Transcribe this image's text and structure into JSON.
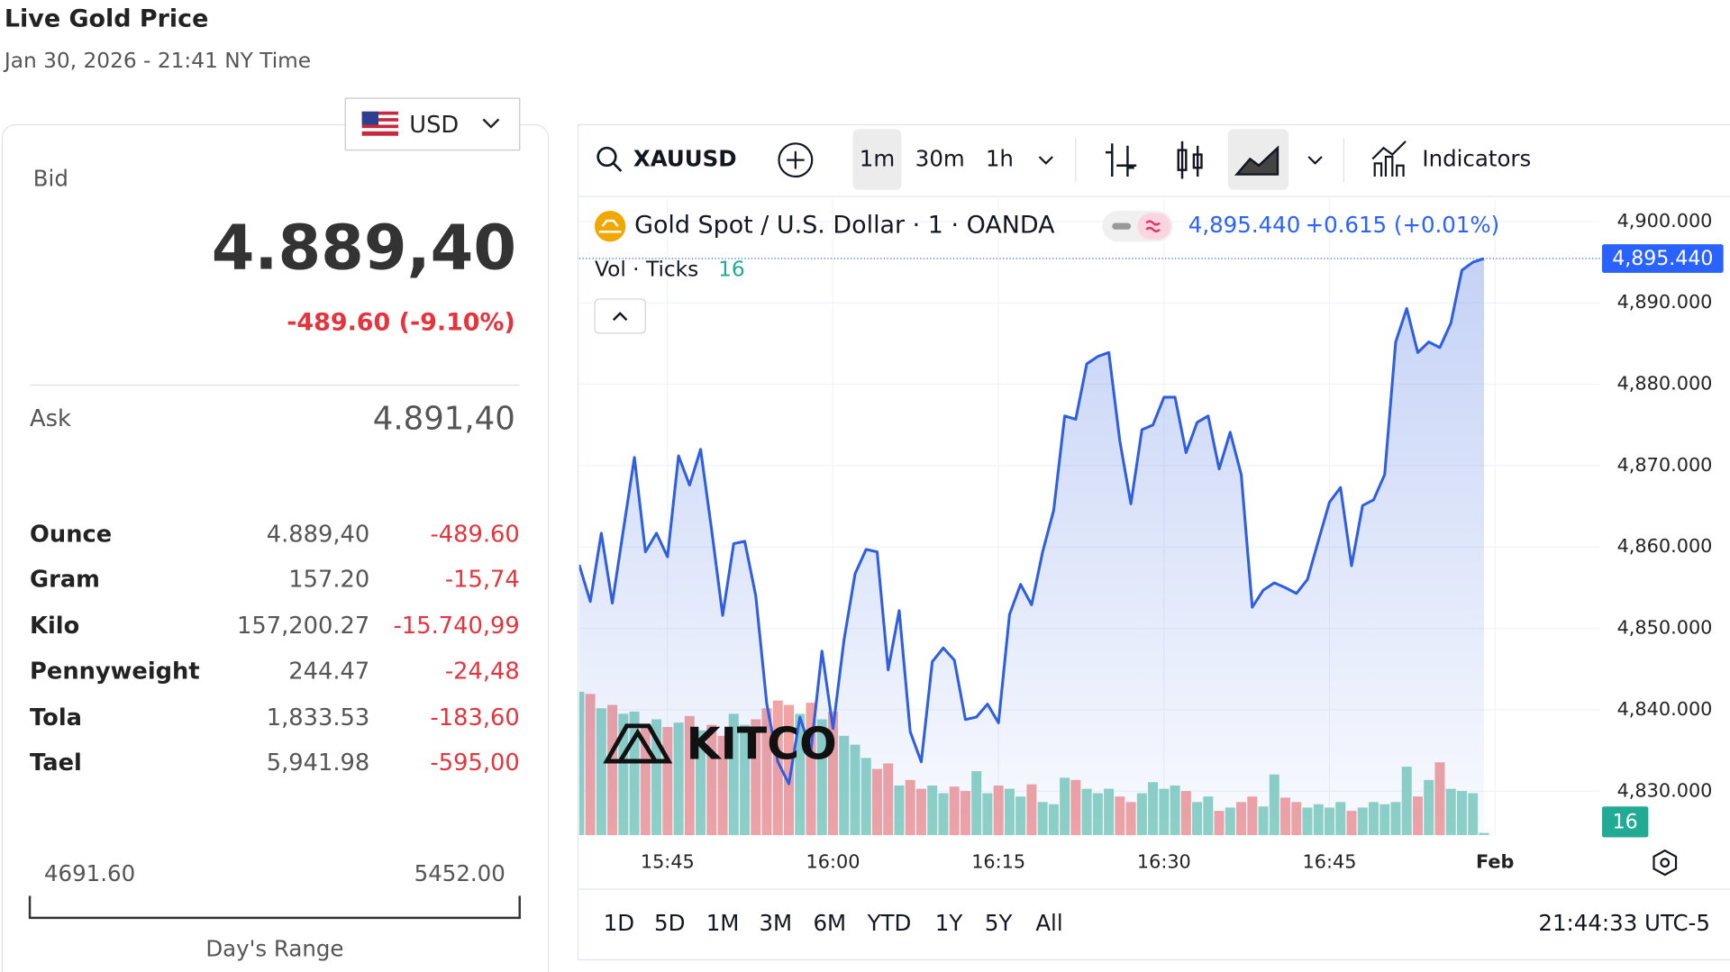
{
  "header": {
    "title": "Live Gold Price",
    "subtitle": "Jan 30, 2026 - 21:41 NY Time"
  },
  "currency": "USD",
  "bid": {
    "label": "Bid",
    "value": "4.889,40",
    "change": "-489.60 (-9.10%)"
  },
  "ask": {
    "label": "Ask",
    "value": "4.891,40"
  },
  "units": {
    "rows": [
      [
        "Ounce",
        "4.889,40",
        "-489.60"
      ],
      [
        "Gram",
        "157.20",
        "-15,74"
      ],
      [
        "Kilo",
        "157,200.27",
        "-15.740,99"
      ],
      [
        "Pennyweight",
        "244.47",
        "-24,48"
      ],
      [
        "Tola",
        "1,833.53",
        "-183,60"
      ],
      [
        "Tael",
        "5,941.98",
        "-595,00"
      ]
    ]
  },
  "range": {
    "low": "4691.60",
    "high": "5452.00",
    "label": "Day's Range"
  },
  "toolbar": {
    "symbol": "XAUUSD",
    "intervals": [
      "1m",
      "30m",
      "1h"
    ],
    "indicators": "Indicators"
  },
  "chart_data": {
    "type": "line",
    "title": "Gold Spot / U.S. Dollar · 1 · OANDA",
    "last_label": "4,895.440",
    "change_label": "+0.615 (+0.01%)",
    "volume_title": "Vol · Ticks",
    "watermark": "KITCO",
    "color": "#2f5fe0",
    "up_color": "#8fd3c6",
    "down_color": "#f2a4a4",
    "values": [
      4857.8,
      4853.3,
      4861.7,
      4853.1,
      4862.1,
      4871.0,
      4859.4,
      4861.7,
      4858.8,
      4871.2,
      4867.6,
      4872.0,
      4862.1,
      4851.6,
      4860.4,
      4860.7,
      4854.0,
      4840.7,
      4833.6,
      4830.9,
      4839.1,
      4835.0,
      4847.2,
      4837.7,
      4848.6,
      4856.7,
      4859.7,
      4859.4,
      4844.9,
      4852.2,
      4837.3,
      4833.6,
      4845.9,
      4847.6,
      4846.1,
      4838.8,
      4839.1,
      4840.7,
      4838.4,
      4851.7,
      4855.4,
      4852.9,
      4859.4,
      4864.5,
      4876.1,
      4875.7,
      4882.5,
      4883.4,
      4883.9,
      4873.0,
      4865.3,
      4874.4,
      4875.0,
      4878.4,
      4878.4,
      4871.6,
      4875.3,
      4876.1,
      4869.6,
      4874.1,
      4868.9,
      4852.6,
      4854.7,
      4855.6,
      4855.0,
      4854.3,
      4856.0,
      4860.8,
      4865.5,
      4867.3,
      4857.7,
      4865.1,
      4865.8,
      4868.9,
      4885.2,
      4889.3,
      4883.9,
      4885.2,
      4884.5,
      4887.5,
      4894.0,
      4895.0,
      4895.44
    ],
    "volume": [
      1040,
      1024,
      920,
      944,
      880,
      896,
      800,
      840,
      784,
      816,
      864,
      760,
      800,
      720,
      880,
      800,
      840,
      920,
      976,
      944,
      880,
      960,
      840,
      896,
      720,
      656,
      560,
      480,
      520,
      360,
      400,
      336,
      360,
      304,
      352,
      320,
      464,
      304,
      360,
      336,
      280,
      368,
      240,
      224,
      416,
      400,
      336,
      304,
      336,
      280,
      240,
      304,
      384,
      336,
      360,
      320,
      240,
      280,
      176,
      200,
      240,
      280,
      208,
      440,
      272,
      240,
      200,
      224,
      200,
      240,
      176,
      200,
      240,
      224,
      240,
      496,
      280,
      400,
      528,
      336,
      320,
      304,
      16
    ],
    "xlim": [
      0,
      92.5
    ],
    "xticks": [
      {
        "value": 8,
        "label": "15:45"
      },
      {
        "value": 23,
        "label": "16:00"
      },
      {
        "value": 38,
        "label": "16:15"
      },
      {
        "value": 53,
        "label": "16:30"
      },
      {
        "value": 68,
        "label": "16:45"
      },
      {
        "value": 83,
        "label": "Feb"
      }
    ],
    "ylim": [
      4824.6,
      4902.8
    ],
    "yticks": [
      {
        "value": 4830,
        "label": "4,830.000"
      },
      {
        "value": 4840,
        "label": "4,840.000"
      },
      {
        "value": 4850,
        "label": "4,850.000"
      },
      {
        "value": 4860,
        "label": "4,860.000"
      },
      {
        "value": 4870,
        "label": "4,870.000"
      },
      {
        "value": 4880,
        "label": "4,880.000"
      },
      {
        "value": 4890,
        "label": "4,890.000"
      },
      {
        "value": 4900,
        "label": "4,900.000"
      }
    ],
    "grid": true
  },
  "ranges": [
    "1D",
    "5D",
    "1M",
    "3M",
    "6M",
    "YTD",
    "1Y",
    "5Y",
    "All"
  ],
  "clock": "21:44:33 UTC-5"
}
